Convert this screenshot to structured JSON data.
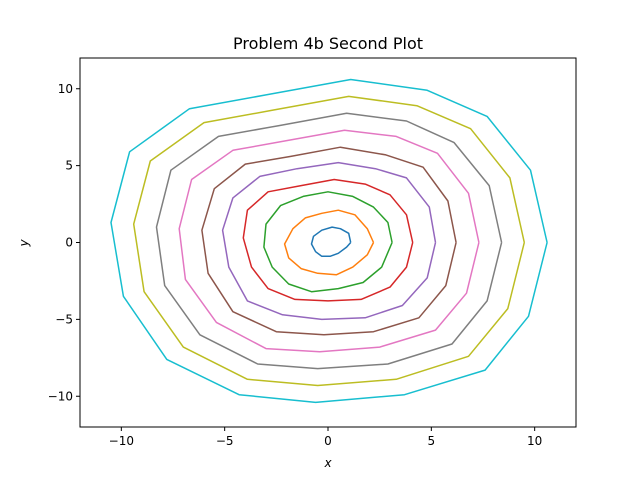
{
  "chart_data": {
    "type": "line",
    "title": "Problem 4b Second Plot",
    "xlabel": "x",
    "ylabel": "y",
    "xlim": [
      -12,
      12
    ],
    "ylim": [
      -12,
      12
    ],
    "xticks": [
      -10,
      -5,
      0,
      5,
      10
    ],
    "yticks": [
      -10,
      -5,
      0,
      5,
      10
    ],
    "xtick_labels": [
      "−10",
      "−5",
      "0",
      "5",
      "10"
    ],
    "ytick_labels": [
      "−10",
      "−5",
      "0",
      "5",
      "10"
    ],
    "grid": false,
    "series": [
      {
        "color": "#1f77b4",
        "x": [
          1.1,
          1.0,
          0.6,
          0.2,
          -0.3,
          -0.7,
          -0.8,
          -0.6,
          -0.3,
          0.1,
          0.5,
          0.9,
          1.1
        ],
        "y": [
          0.0,
          0.6,
          0.9,
          1.0,
          0.8,
          0.4,
          -0.1,
          -0.6,
          -0.9,
          -0.9,
          -0.7,
          -0.3,
          0.0
        ]
      },
      {
        "color": "#ff7f0e",
        "x": [
          2.2,
          1.9,
          1.3,
          0.5,
          -0.3,
          -1.1,
          -1.7,
          -2.1,
          -1.9,
          -1.3,
          -0.5,
          0.4,
          1.2,
          1.9,
          2.2
        ],
        "y": [
          0.0,
          0.9,
          1.8,
          2.1,
          1.9,
          1.6,
          0.9,
          -0.1,
          -1.0,
          -1.7,
          -2.0,
          -2.1,
          -1.6,
          -0.8,
          0.0
        ]
      },
      {
        "color": "#2ca02c",
        "x": [
          3.1,
          2.9,
          2.2,
          1.2,
          0.0,
          -1.2,
          -2.3,
          -3.0,
          -3.1,
          -2.7,
          -1.9,
          -0.8,
          0.5,
          1.7,
          2.6,
          3.1
        ],
        "y": [
          0.0,
          1.3,
          2.3,
          3.0,
          3.3,
          3.0,
          2.4,
          1.2,
          -0.3,
          -1.6,
          -2.7,
          -3.2,
          -3.0,
          -2.6,
          -1.6,
          0.0
        ]
      },
      {
        "color": "#d62728",
        "x": [
          4.1,
          3.8,
          3.0,
          1.8,
          0.3,
          -1.3,
          -2.9,
          -3.9,
          -4.1,
          -3.7,
          -2.9,
          -1.6,
          0.0,
          1.6,
          3.0,
          3.8,
          4.1
        ],
        "y": [
          0.0,
          1.8,
          3.1,
          3.8,
          4.1,
          3.7,
          3.3,
          2.1,
          0.3,
          -1.6,
          -3.0,
          -3.7,
          -3.8,
          -3.7,
          -2.9,
          -1.6,
          0.0
        ]
      },
      {
        "color": "#9467bd",
        "x": [
          5.2,
          4.9,
          3.8,
          2.3,
          0.5,
          -1.5,
          -3.3,
          -4.6,
          -5.1,
          -4.8,
          -3.9,
          -2.2,
          -0.3,
          1.8,
          3.6,
          4.8,
          5.2
        ],
        "y": [
          0.0,
          2.3,
          4.2,
          4.8,
          5.2,
          4.8,
          4.3,
          2.9,
          0.8,
          -1.6,
          -3.8,
          -4.7,
          -5.0,
          -4.9,
          -4.1,
          -2.3,
          0.0
        ]
      },
      {
        "color": "#8c564b",
        "x": [
          6.2,
          5.8,
          4.6,
          2.8,
          0.6,
          -1.8,
          -4.0,
          -5.5,
          -6.1,
          -5.8,
          -4.6,
          -2.5,
          -0.2,
          2.2,
          4.4,
          5.7,
          6.2
        ],
        "y": [
          0.0,
          2.7,
          4.9,
          5.7,
          6.2,
          5.6,
          5.1,
          3.5,
          0.8,
          -2.0,
          -4.5,
          -5.8,
          -6.0,
          -5.8,
          -4.9,
          -2.8,
          0.0
        ]
      },
      {
        "color": "#e377c2",
        "x": [
          7.3,
          6.8,
          5.3,
          3.3,
          0.8,
          -2.1,
          -4.6,
          -6.6,
          -7.2,
          -6.9,
          -5.4,
          -3.0,
          -0.4,
          2.5,
          5.2,
          6.7,
          7.3
        ],
        "y": [
          0.0,
          3.2,
          5.8,
          6.9,
          7.3,
          6.6,
          6.0,
          4.1,
          0.9,
          -2.4,
          -5.2,
          -6.9,
          -7.1,
          -6.8,
          -5.7,
          -3.3,
          0.0
        ]
      },
      {
        "color": "#7f7f7f",
        "x": [
          8.4,
          7.8,
          6.1,
          3.8,
          0.9,
          -2.4,
          -5.3,
          -7.6,
          -8.3,
          -7.9,
          -6.2,
          -3.4,
          -0.5,
          2.9,
          6.0,
          7.7,
          8.4
        ],
        "y": [
          0.0,
          3.7,
          6.5,
          7.9,
          8.4,
          7.6,
          6.9,
          4.7,
          1.0,
          -2.8,
          -6.0,
          -7.9,
          -8.2,
          -7.9,
          -6.6,
          -3.8,
          0.0
        ]
      },
      {
        "color": "#bcbd22",
        "x": [
          9.5,
          8.8,
          6.9,
          4.3,
          1.0,
          -2.7,
          -6.0,
          -8.6,
          -9.4,
          -8.9,
          -7.0,
          -3.9,
          -0.5,
          3.3,
          6.8,
          8.7,
          9.5
        ],
        "y": [
          0.0,
          4.2,
          7.4,
          8.9,
          9.5,
          8.6,
          7.8,
          5.3,
          1.2,
          -3.2,
          -6.8,
          -8.9,
          -9.3,
          -8.9,
          -7.4,
          -4.3,
          0.0
        ]
      },
      {
        "color": "#17becf",
        "x": [
          10.6,
          9.8,
          7.7,
          4.8,
          1.1,
          -3.0,
          -6.7,
          -9.6,
          -10.5,
          -9.9,
          -7.8,
          -4.3,
          -0.6,
          3.7,
          7.6,
          9.7,
          10.6
        ],
        "y": [
          0.0,
          4.7,
          8.2,
          9.9,
          10.6,
          9.6,
          8.7,
          5.9,
          1.3,
          -3.5,
          -7.6,
          -9.9,
          -10.4,
          -9.9,
          -8.3,
          -4.8,
          0.0
        ]
      }
    ]
  }
}
